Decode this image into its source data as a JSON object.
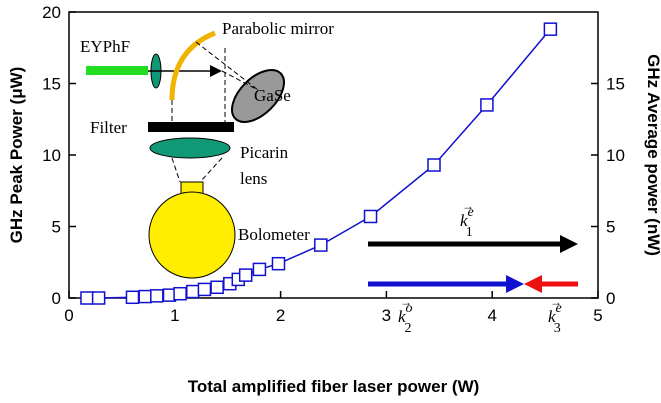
{
  "chart_data": {
    "type": "line",
    "x": [
      0.17,
      0.28,
      0.6,
      0.72,
      0.83,
      0.95,
      1.05,
      1.17,
      1.28,
      1.4,
      1.52,
      1.6,
      1.67,
      1.8,
      1.98,
      2.38,
      2.85,
      3.45,
      3.95,
      4.55
    ],
    "series": [
      {
        "color": "#1010d0",
        "marker": "open-square",
        "values": [
          0.0,
          0.0,
          0.05,
          0.1,
          0.15,
          0.2,
          0.3,
          0.45,
          0.6,
          0.75,
          1.0,
          1.3,
          1.6,
          2.0,
          2.4,
          3.7,
          5.7,
          9.3,
          13.5,
          18.8
        ]
      }
    ],
    "xlabel": "Total amplified fiber laser power (W)",
    "ylabel": "GHz Peak Power (μW)",
    "y2label": "GHz Average power (nW)",
    "xlim": [
      0,
      5
    ],
    "xticks": [
      0,
      1,
      2,
      3,
      4,
      5
    ],
    "ylim": [
      0,
      20
    ],
    "yticks": [
      0,
      5,
      10,
      15,
      20
    ],
    "y2lim": [
      0,
      20
    ],
    "y2ticks": [
      0,
      5,
      10,
      15
    ],
    "inset": {
      "mirror": "Parabolic mirror",
      "source": "EYPhF",
      "crystal": "GaSe",
      "filter": "Filter",
      "lens1": "Picarin",
      "lens2": "lens",
      "detector": "Bolometer"
    },
    "vectors": [
      {
        "symbol": "k",
        "sub": "1",
        "sup": "e"
      },
      {
        "symbol": "k",
        "sub": "2",
        "sup": "o"
      },
      {
        "symbol": "k",
        "sub": "3",
        "sup": "e"
      }
    ]
  }
}
